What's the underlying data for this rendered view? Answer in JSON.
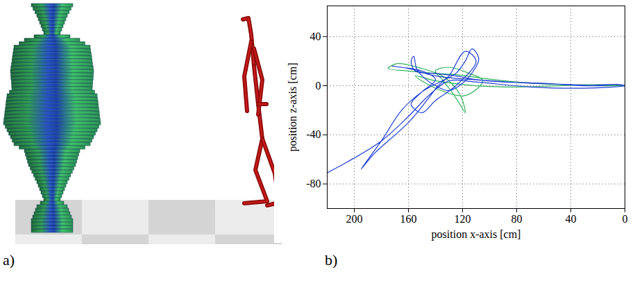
{
  "image_panel": {
    "label": "a)"
  },
  "chart_data": {
    "type": "line",
    "panel_label": "b)",
    "x_label": "position x-axis [cm]",
    "y_label": "position z-axis [cm]",
    "xlim": [
      220,
      0
    ],
    "xticks": [
      200,
      160,
      120,
      80,
      40,
      0
    ],
    "ylim": [
      -100,
      65
    ],
    "yticks": [
      40,
      0,
      -40,
      -80
    ],
    "grid": true,
    "series": [
      {
        "color": "#2fb35a",
        "x": [
          0,
          20,
          50,
          80,
          105,
          125,
          140,
          160,
          175,
          168,
          150,
          135,
          125,
          120,
          118,
          122,
          128,
          135,
          140,
          130,
          115,
          105,
          118,
          140,
          155,
          140,
          110,
          80,
          50,
          20,
          0
        ],
        "y": [
          0,
          0,
          1,
          3,
          6,
          9,
          10,
          12,
          14,
          18,
          14,
          8,
          -2,
          -12,
          -22,
          -15,
          -5,
          5,
          12,
          15,
          10,
          4,
          -8,
          -2,
          8,
          4,
          0,
          -1,
          0,
          1,
          0
        ]
      },
      {
        "color": "#1f3fd8",
        "x": [
          0,
          10,
          30,
          60,
          90,
          110,
          125,
          140,
          155,
          158,
          156,
          154,
          148,
          140,
          130,
          120,
          112,
          108,
          113,
          118,
          125,
          135,
          150,
          165,
          180,
          195,
          185,
          160,
          145,
          138,
          130,
          118,
          110,
          125,
          140,
          150,
          158,
          150,
          140,
          150,
          165,
          172,
          160,
          140,
          100,
          70,
          40,
          20,
          5,
          0,
          30,
          70,
          110,
          130,
          145,
          160,
          180,
          205,
          222
        ],
        "y": [
          0,
          1,
          0,
          2,
          3,
          5,
          8,
          10,
          12,
          20,
          24,
          14,
          6,
          0,
          -4,
          2,
          12,
          22,
          30,
          20,
          10,
          4,
          -5,
          -20,
          -45,
          -68,
          -55,
          -30,
          -10,
          0,
          8,
          28,
          20,
          0,
          -12,
          -22,
          -15,
          -5,
          5,
          12,
          15,
          16,
          14,
          8,
          4,
          2,
          1,
          0,
          1,
          0,
          -2,
          -1,
          3,
          4,
          -8,
          -25,
          -45,
          -62,
          -72
        ]
      }
    ]
  }
}
